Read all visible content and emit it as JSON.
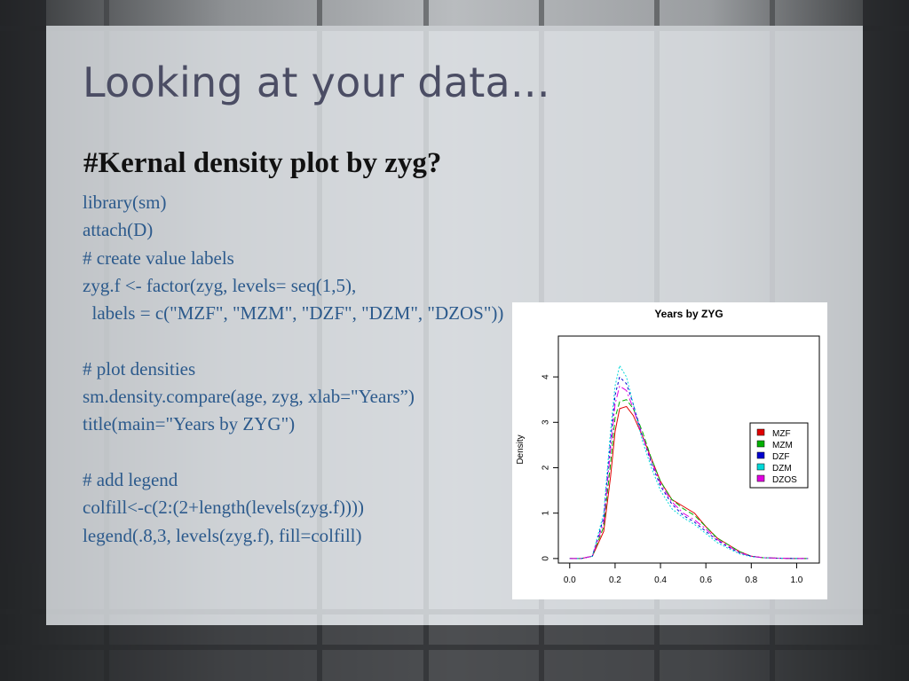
{
  "slide": {
    "title": "Looking at your data...",
    "subtitle": "#Kernal density plot by zyg?",
    "code_lines": [
      "library(sm)",
      "attach(D)",
      "# create value labels",
      "zyg.f <- factor(zyg, levels= seq(1,5),",
      "  labels = c(\"MZF\", \"MZM\", \"DZF\", \"DZM\", \"DZOS\"))",
      "",
      "# plot densities",
      "sm.density.compare(age, zyg, xlab=\"Years”)",
      "title(main=\"Years by ZYG\")",
      "",
      "# add legend",
      "colfill<-c(2:(2+length(levels(zyg.f))))",
      "legend(.8,3, levels(zyg.f), fill=colfill)"
    ]
  },
  "colors": {
    "title": "#4b4d64",
    "code": "#2c5a8c",
    "subtitle": "#111111"
  },
  "chart_data": {
    "type": "line",
    "title": "Years by ZYG",
    "xlabel": "",
    "ylabel": "Density",
    "xlim": [
      -0.05,
      1.1
    ],
    "ylim": [
      -0.1,
      4.9
    ],
    "xticks": [
      0.0,
      0.2,
      0.4,
      0.6,
      0.8,
      1.0
    ],
    "xtick_labels": [
      "0.0",
      "0.2",
      "0.4",
      "0.6",
      "0.8",
      "1.0"
    ],
    "yticks": [
      0,
      1,
      2,
      3,
      4
    ],
    "ytick_labels": [
      "0",
      "1",
      "2",
      "3",
      "4"
    ],
    "legend_position": "right",
    "grid": false,
    "series": [
      {
        "name": "MZF",
        "color": "#e00000",
        "x": [
          0.0,
          0.05,
          0.1,
          0.15,
          0.18,
          0.2,
          0.22,
          0.25,
          0.28,
          0.32,
          0.36,
          0.4,
          0.45,
          0.5,
          0.55,
          0.6,
          0.65,
          0.7,
          0.75,
          0.8,
          0.85,
          0.9,
          1.0,
          1.05
        ],
        "y": [
          0.0,
          0.0,
          0.05,
          0.6,
          1.8,
          2.8,
          3.3,
          3.35,
          3.15,
          2.7,
          2.2,
          1.7,
          1.3,
          1.15,
          1.0,
          0.7,
          0.45,
          0.3,
          0.15,
          0.05,
          0.02,
          0.01,
          0.0,
          0.0
        ]
      },
      {
        "name": "MZM",
        "color": "#00b000",
        "x": [
          0.0,
          0.05,
          0.1,
          0.15,
          0.18,
          0.2,
          0.22,
          0.25,
          0.28,
          0.32,
          0.36,
          0.4,
          0.45,
          0.5,
          0.55,
          0.6,
          0.65,
          0.7,
          0.75,
          0.8,
          0.85,
          0.9,
          1.0,
          1.05
        ],
        "y": [
          0.0,
          0.0,
          0.05,
          0.7,
          2.1,
          3.1,
          3.45,
          3.5,
          3.3,
          2.8,
          2.2,
          1.7,
          1.3,
          1.1,
          0.95,
          0.7,
          0.45,
          0.3,
          0.15,
          0.05,
          0.02,
          0.01,
          0.0,
          0.0
        ]
      },
      {
        "name": "DZF",
        "color": "#0000d0",
        "x": [
          0.0,
          0.05,
          0.1,
          0.15,
          0.18,
          0.2,
          0.22,
          0.25,
          0.28,
          0.32,
          0.36,
          0.4,
          0.45,
          0.5,
          0.55,
          0.6,
          0.65,
          0.7,
          0.75,
          0.8,
          0.85,
          0.9,
          1.0,
          1.05
        ],
        "y": [
          0.0,
          0.0,
          0.05,
          0.9,
          2.6,
          3.6,
          4.0,
          3.85,
          3.4,
          2.7,
          2.1,
          1.6,
          1.2,
          0.95,
          0.8,
          0.6,
          0.4,
          0.25,
          0.12,
          0.05,
          0.02,
          0.01,
          0.0,
          0.0
        ]
      },
      {
        "name": "DZM",
        "color": "#00d8d8",
        "x": [
          0.0,
          0.05,
          0.1,
          0.15,
          0.18,
          0.2,
          0.22,
          0.25,
          0.28,
          0.32,
          0.36,
          0.4,
          0.45,
          0.5,
          0.55,
          0.6,
          0.65,
          0.7,
          0.75,
          0.8,
          0.85,
          0.9,
          1.0,
          1.05
        ],
        "y": [
          0.0,
          0.0,
          0.05,
          1.0,
          2.8,
          3.8,
          4.25,
          4.0,
          3.4,
          2.6,
          2.0,
          1.5,
          1.1,
          0.9,
          0.75,
          0.55,
          0.35,
          0.22,
          0.1,
          0.04,
          0.02,
          0.01,
          0.0,
          0.0
        ]
      },
      {
        "name": "DZOS",
        "color": "#e000e0",
        "x": [
          0.0,
          0.05,
          0.1,
          0.15,
          0.18,
          0.2,
          0.22,
          0.25,
          0.28,
          0.32,
          0.36,
          0.4,
          0.45,
          0.5,
          0.55,
          0.6,
          0.65,
          0.7,
          0.75,
          0.8,
          0.85,
          0.9,
          1.0,
          1.05
        ],
        "y": [
          0.0,
          0.0,
          0.05,
          0.8,
          2.4,
          3.4,
          3.8,
          3.7,
          3.3,
          2.7,
          2.15,
          1.65,
          1.25,
          1.0,
          0.85,
          0.65,
          0.42,
          0.27,
          0.13,
          0.05,
          0.02,
          0.01,
          0.0,
          0.0
        ]
      }
    ]
  }
}
